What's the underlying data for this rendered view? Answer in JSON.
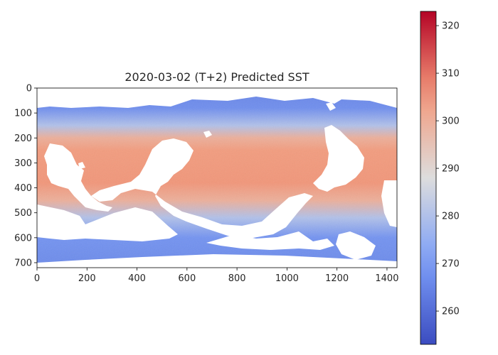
{
  "chart_data": {
    "type": "heatmap",
    "title": "2020-03-02 (T+2)  Predicted SST",
    "xlabel": "",
    "ylabel": "",
    "x_range": [
      0,
      1440
    ],
    "y_range": [
      0,
      720
    ],
    "y_inverted": true,
    "x_ticks": [
      0,
      200,
      400,
      600,
      800,
      1000,
      1200,
      1400
    ],
    "y_ticks": [
      0,
      100,
      200,
      300,
      400,
      500,
      600,
      700
    ],
    "colormap": "coolwarm",
    "colorbar": {
      "range": [
        253,
        323
      ],
      "ticks": [
        260,
        270,
        280,
        290,
        300,
        310,
        320
      ]
    },
    "grid": false,
    "masked_color": "#ffffff",
    "field_summary": {
      "latitude_band_rows": [
        0,
        80,
        150,
        200,
        250,
        380,
        450,
        520,
        600,
        720
      ],
      "latitude_band_values": [
        265,
        267,
        280,
        300,
        305,
        306,
        300,
        280,
        268,
        266
      ]
    }
  }
}
